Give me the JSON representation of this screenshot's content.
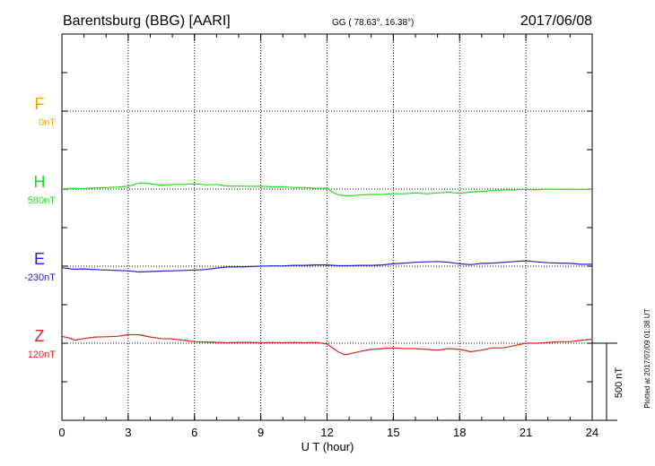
{
  "header": {
    "station": "Barentsburg (BBG)  [AARI]",
    "coords": "GG ( 78.63°,  16.38°)",
    "date": "2017/06/08"
  },
  "side_note": "Plotted at 2017/07/09 01:38 UT",
  "scale_bar_label": "500 nT",
  "chart_data": {
    "type": "line",
    "xlabel": "U T (hour)",
    "xlim": [
      0,
      24
    ],
    "xticks": [
      "0",
      "3",
      "6",
      "9",
      "12",
      "15",
      "18",
      "21",
      "24"
    ],
    "grid": true,
    "scale_nT_per_bar": 500,
    "series": [
      {
        "name": "F",
        "baseline_label": "0nT",
        "color": "#f5a400",
        "x": [],
        "y": []
      },
      {
        "name": "H",
        "baseline_label": "580nT",
        "color": "#22dd22",
        "x": [
          0,
          0.5,
          1,
          1.5,
          2,
          2.5,
          3,
          3.5,
          4,
          4.5,
          5,
          5.5,
          6,
          6.5,
          7,
          7.5,
          8,
          8.5,
          9,
          9.5,
          10,
          10.5,
          11,
          11.5,
          12,
          12.3,
          12.6,
          13,
          13.5,
          14,
          14.5,
          15,
          15.5,
          16,
          16.5,
          17,
          17.5,
          18,
          18.5,
          19,
          19.5,
          20,
          20.5,
          21,
          21.5,
          22,
          22.5,
          23,
          23.5,
          24
        ],
        "y": [
          2,
          5,
          3,
          8,
          10,
          13,
          18,
          40,
          35,
          25,
          30,
          30,
          35,
          28,
          30,
          20,
          20,
          18,
          18,
          15,
          15,
          10,
          10,
          5,
          5,
          -25,
          -40,
          -45,
          -38,
          -35,
          -35,
          -30,
          -30,
          -25,
          -30,
          -25,
          -20,
          -28,
          -20,
          -15,
          -10,
          -5,
          -5,
          -2,
          -5,
          0,
          -2,
          -2,
          -2,
          -2
        ]
      },
      {
        "name": "E",
        "baseline_label": "-230nT",
        "color": "#2222cc",
        "x": [
          0,
          0.5,
          1,
          1.5,
          2,
          2.5,
          3,
          3.5,
          4,
          4.5,
          5,
          5.5,
          6,
          6.5,
          7,
          7.5,
          8,
          8.5,
          9,
          9.5,
          10,
          10.5,
          11,
          11.5,
          12,
          12.5,
          13,
          13.5,
          14,
          14.5,
          15,
          15.5,
          16,
          16.5,
          17,
          17.5,
          18,
          18.5,
          19,
          19.5,
          20,
          20.5,
          21,
          21.5,
          22,
          22.5,
          23,
          23.5,
          24
        ],
        "y": [
          -10,
          -20,
          -18,
          -22,
          -25,
          -28,
          -30,
          -38,
          -35,
          -32,
          -30,
          -28,
          -25,
          -22,
          -12,
          -5,
          -5,
          -3,
          0,
          2,
          2,
          5,
          5,
          8,
          8,
          3,
          3,
          5,
          5,
          8,
          15,
          20,
          25,
          28,
          30,
          25,
          15,
          10,
          18,
          20,
          25,
          30,
          35,
          28,
          22,
          20,
          18,
          12,
          12
        ]
      },
      {
        "name": "Z",
        "baseline_label": "120nT",
        "color": "#dd2222",
        "x": [
          0,
          0.3,
          0.6,
          1,
          1.5,
          2,
          2.5,
          3,
          3.5,
          4,
          4.5,
          5,
          5.5,
          6,
          6.5,
          7,
          7.5,
          8,
          8.5,
          9,
          9.5,
          10,
          10.5,
          11,
          11.5,
          12,
          12.5,
          12.8,
          13,
          13.3,
          13.6,
          14,
          14.5,
          15,
          15.5,
          16,
          16.5,
          17,
          17.5,
          18,
          18.5,
          19,
          19.5,
          20,
          20.5,
          21,
          21.5,
          22,
          22.5,
          23,
          23.5,
          24
        ],
        "y": [
          45,
          35,
          20,
          30,
          40,
          42,
          45,
          55,
          55,
          40,
          30,
          28,
          20,
          10,
          8,
          5,
          3,
          5,
          5,
          3,
          5,
          3,
          5,
          3,
          5,
          -5,
          -55,
          -75,
          -70,
          -60,
          -50,
          -40,
          -35,
          -30,
          -35,
          -35,
          -40,
          -45,
          -35,
          -40,
          -55,
          -45,
          -30,
          -30,
          -15,
          0,
          0,
          5,
          10,
          10,
          20,
          25
        ]
      }
    ]
  }
}
